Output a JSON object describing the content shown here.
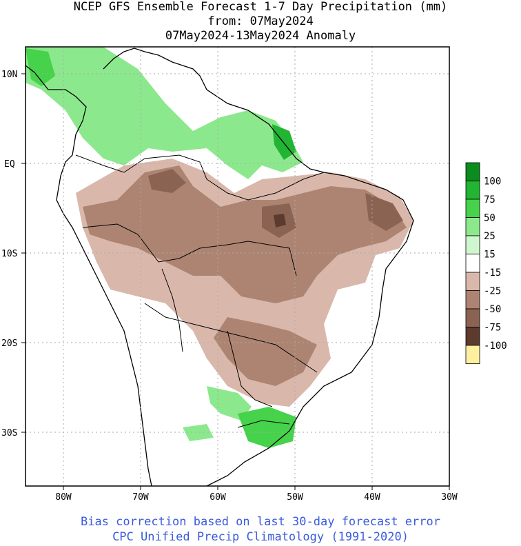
{
  "title": {
    "line1": "NCEP GFS Ensemble Forecast 1-7 Day Precipitation (mm)",
    "line2": "from: 07May2024",
    "line3": "07May2024-13May2024 Anomaly"
  },
  "map": {
    "lat_labels": [
      "10N",
      "EQ",
      "10S",
      "20S",
      "30S"
    ],
    "lon_labels": [
      "80W",
      "70W",
      "60W",
      "50W",
      "40W",
      "30W"
    ]
  },
  "legend": {
    "items": [
      {
        "label": "",
        "color": "#0a8c1e"
      },
      {
        "label": "100",
        "color": "#22b433"
      },
      {
        "label": "75",
        "color": "#46d24a"
      },
      {
        "label": "50",
        "color": "#8ce88c"
      },
      {
        "label": "25",
        "color": "#cff7cf"
      },
      {
        "label": "15",
        "color": "#ffffff"
      },
      {
        "label": "-15",
        "color": "#d9b8ab"
      },
      {
        "label": "-25",
        "color": "#ad8472"
      },
      {
        "label": "-50",
        "color": "#8a6353"
      },
      {
        "label": "-75",
        "color": "#5c3a2e"
      },
      {
        "label": "-100",
        "color": "#fff0a0"
      }
    ]
  },
  "footer": {
    "line1": "Bias correction based on last 30-day forecast error",
    "line2": "CPC Unified Precip Climatology (1991-2020)"
  }
}
